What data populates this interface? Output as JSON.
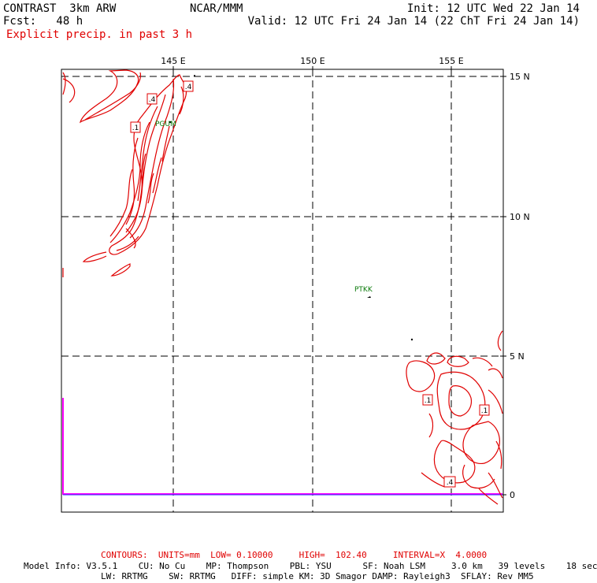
{
  "header": {
    "line1_left": "CONTRAST  3km ARW",
    "line1_center": "NCAR/MMM",
    "line1_right": "Init: 12 UTC Wed 22 Jan 14",
    "line2_left": "Fcst:   48 h",
    "line2_right": "Valid: 12 UTC Fri 24 Jan 14 (22 ChT Fri 24 Jan 14)",
    "field": "Explicit precip. in past 3 h"
  },
  "map": {
    "lon_ticks": [
      "145 E",
      "150 E",
      "155 E"
    ],
    "lat_ticks": [
      "15 N",
      "10 N",
      "5 N",
      "0"
    ],
    "stations": [
      "PTKK",
      "PGUM"
    ],
    "contour_labels": [
      ".4",
      ".4",
      ".1",
      ".1",
      ".1",
      ".4"
    ],
    "colors": {
      "contour": "#e00000",
      "frame": "#000000",
      "station": "#0a7a0a",
      "boundary": "#ff00ff"
    }
  },
  "footer": {
    "contours": "CONTOURS:  UNITS=mm  LOW= 0.10000     HIGH=  102.40     INTERVAL=X  4.0000",
    "model_line1": "Model Info: V3.5.1    CU: No Cu    MP: Thompson    PBL: YSU      SF: Noah LSM     3.0 km   39 levels    18 sec",
    "model_line2": "LW: RRTMG    SW: RRTMG   DIFF: simple KM: 3D Smagor DAMP: Rayleigh3  SFLAY: Rev MM5"
  }
}
